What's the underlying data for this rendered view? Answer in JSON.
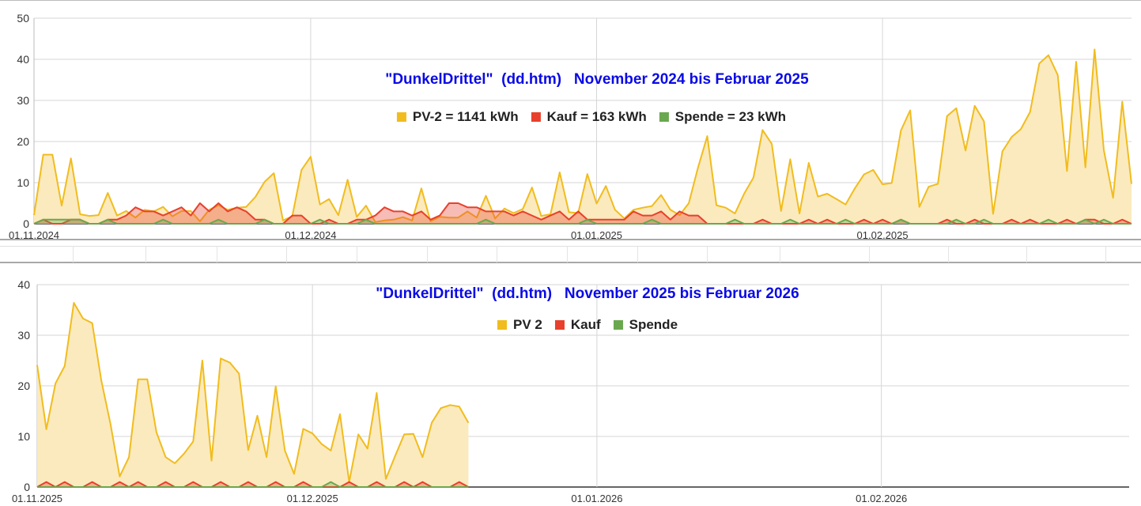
{
  "colors": {
    "pv": "#f1bc1e",
    "pv_fill": "#fbeabd",
    "kauf": "#e8402c",
    "spende": "#6aa84f",
    "title": "#0a0ae6"
  },
  "chart_data": [
    {
      "type": "area",
      "title": "\"DunkelDrittel\"  (dd.htm)   November 2024 bis Februar 2025",
      "legend": [
        "PV-2 = 1141 kWh",
        "Kauf = 163 kWh",
        "Spende = 23 kWh"
      ],
      "legend_position": "top",
      "ylim": [
        0,
        50
      ],
      "yticks": [
        0,
        10,
        20,
        30,
        40,
        50
      ],
      "xlim": [
        "01.11.2024",
        "28.02.2025"
      ],
      "xticks": [
        "01.11.2024",
        "01.12.2024",
        "01.01.2025",
        "01.02.2025"
      ],
      "grid": true,
      "x": [
        "01.11.2024",
        "02.11.2024",
        "03.11.2024",
        "04.11.2024",
        "05.11.2024",
        "06.11.2024",
        "07.11.2024",
        "08.11.2024",
        "09.11.2024",
        "10.11.2024",
        "11.11.2024",
        "12.11.2024",
        "13.11.2024",
        "14.11.2024",
        "15.11.2024",
        "16.11.2024",
        "17.11.2024",
        "18.11.2024",
        "19.11.2024",
        "20.11.2024",
        "21.11.2024",
        "22.11.2024",
        "23.11.2024",
        "24.11.2024",
        "25.11.2024",
        "26.11.2024",
        "27.11.2024",
        "28.11.2024",
        "29.11.2024",
        "30.11.2024",
        "01.12.2024",
        "02.12.2024",
        "03.12.2024",
        "04.12.2024",
        "05.12.2024",
        "06.12.2024",
        "07.12.2024",
        "08.12.2024",
        "09.12.2024",
        "10.12.2024",
        "11.12.2024",
        "12.12.2024",
        "13.12.2024",
        "14.12.2024",
        "15.12.2024",
        "16.12.2024",
        "17.12.2024",
        "18.12.2024",
        "19.12.2024",
        "20.12.2024",
        "21.12.2024",
        "22.12.2024",
        "23.12.2024",
        "24.12.2024",
        "25.12.2024",
        "26.12.2024",
        "27.12.2024",
        "28.12.2024",
        "29.12.2024",
        "30.12.2024",
        "31.12.2024",
        "01.01.2025",
        "02.01.2025",
        "03.01.2025",
        "04.01.2025",
        "05.01.2025",
        "06.01.2025",
        "07.01.2025",
        "08.01.2025",
        "09.01.2025",
        "10.01.2025",
        "11.01.2025",
        "12.01.2025",
        "13.01.2025",
        "14.01.2025",
        "15.01.2025",
        "16.01.2025",
        "17.01.2025",
        "18.01.2025",
        "19.01.2025",
        "20.01.2025",
        "21.01.2025",
        "22.01.2025",
        "23.01.2025",
        "24.01.2025",
        "25.01.2025",
        "26.01.2025",
        "27.01.2025",
        "28.01.2025",
        "29.01.2025",
        "30.01.2025",
        "31.01.2025",
        "01.02.2025",
        "02.02.2025",
        "03.02.2025",
        "04.02.2025",
        "05.02.2025",
        "06.02.2025",
        "07.02.2025",
        "08.02.2025",
        "09.02.2025",
        "10.02.2025",
        "11.02.2025",
        "12.02.2025",
        "13.02.2025",
        "14.02.2025",
        "15.02.2025",
        "16.02.2025",
        "17.02.2025",
        "18.02.2025",
        "19.02.2025",
        "20.02.2025",
        "21.02.2025",
        "22.02.2025",
        "23.02.2025",
        "24.02.2025",
        "25.02.2025",
        "26.02.2025",
        "27.02.2025",
        "28.02.2025"
      ],
      "series": [
        {
          "name": "PV-2",
          "values": [
            2.1,
            16.8,
            16.8,
            4.4,
            15.9,
            2.3,
            1.9,
            2.1,
            7.5,
            2,
            3.1,
            1.5,
            3.4,
            3,
            4.1,
            1.8,
            3.1,
            3.1,
            0.6,
            3.4,
            4.5,
            3.4,
            3.9,
            4.1,
            6.5,
            10.2,
            12.3,
            0.8,
            1.8,
            13.1,
            16.3,
            4.7,
            6,
            2.1,
            10.7,
            1.7,
            4.4,
            0.4,
            0.8,
            1,
            1.6,
            0.8,
            8.6,
            0.6,
            1.7,
            1.5,
            1.5,
            3,
            1.5,
            6.8,
            1.3,
            3.7,
            2.6,
            3.6,
            8.8,
            1.9,
            2.3,
            12.5,
            2.8,
            2.6,
            12.1,
            4.9,
            9.2,
            3.4,
            1.3,
            3.4,
            3.9,
            4.3,
            7,
            3.4,
            2.1,
            5,
            13.7,
            21.3,
            4.5,
            3.9,
            2.5,
            7.3,
            11.2,
            22.8,
            19.4,
            3.1,
            15.7,
            2.5,
            14.8,
            6.6,
            7.3,
            6,
            4.7,
            8.6,
            12,
            13.1,
            9.6,
            9.9,
            22.7,
            27.6,
            4.1,
            9,
            9.7,
            26.2,
            28.1,
            17.8,
            28.7,
            24.9,
            2.4,
            17.6,
            21.1,
            23,
            27.2,
            39,
            41,
            36.2,
            12.8,
            39.4,
            13.7,
            42.4,
            17.9,
            6.3,
            29.7,
            9.7
          ]
        },
        {
          "name": "Kauf",
          "values": [
            0,
            1,
            0,
            0,
            1,
            1,
            0,
            0,
            1,
            1,
            2,
            4,
            3,
            3,
            2,
            3,
            4,
            2,
            5,
            3,
            5,
            3,
            4,
            3,
            1,
            1,
            0,
            0,
            2,
            2,
            0,
            0,
            1,
            0,
            0,
            1,
            1,
            2,
            4,
            3,
            3,
            2,
            3,
            1,
            2,
            5,
            5,
            4,
            4,
            3,
            3,
            3,
            2,
            3,
            2,
            1,
            2,
            3,
            1,
            3,
            1,
            1,
            1,
            1,
            1,
            3,
            2,
            2,
            3,
            1,
            3,
            2,
            2,
            0,
            0,
            0,
            0,
            0,
            0,
            1,
            0,
            0,
            0,
            0,
            1,
            0,
            1,
            0,
            0,
            0,
            1,
            0,
            1,
            0,
            1,
            0,
            0,
            0,
            0,
            1,
            0,
            0,
            1,
            0,
            0,
            0,
            1,
            0,
            1,
            0,
            0,
            0,
            1,
            0,
            1,
            1,
            0,
            0,
            1,
            0
          ]
        },
        {
          "name": "Spende",
          "values": [
            0,
            1,
            1,
            1,
            1,
            1,
            0,
            0,
            1,
            0,
            0,
            0,
            0,
            0,
            1,
            0,
            0,
            0,
            0,
            0,
            1,
            0,
            0,
            0,
            0,
            1,
            0,
            0,
            0,
            0,
            0,
            1,
            0,
            0,
            0,
            0,
            1,
            0,
            0,
            0,
            0,
            0,
            0,
            0,
            0,
            0,
            0,
            0,
            0,
            1,
            0,
            0,
            0,
            0,
            0,
            0,
            0,
            0,
            0,
            0,
            1,
            0,
            0,
            0,
            0,
            0,
            0,
            1,
            0,
            0,
            0,
            0,
            0,
            0,
            0,
            0,
            1,
            0,
            0,
            0,
            0,
            0,
            1,
            0,
            0,
            0,
            0,
            0,
            1,
            0,
            0,
            0,
            0,
            0,
            1,
            0,
            0,
            0,
            0,
            0,
            1,
            0,
            0,
            1,
            0,
            0,
            0,
            0,
            0,
            0,
            1,
            0,
            0,
            0,
            1,
            0,
            1,
            0,
            0,
            0
          ]
        }
      ]
    },
    {
      "type": "area",
      "title": "\"DunkelDrittel\"  (dd.htm)   November 2025 bis Februar 2026",
      "legend": [
        "PV 2",
        "Kauf",
        "Spende"
      ],
      "legend_position": "top",
      "ylim": [
        0,
        40
      ],
      "yticks": [
        0,
        10,
        20,
        30,
        40
      ],
      "xlim": [
        "01.11.2025",
        "28.02.2026"
      ],
      "xticks": [
        "01.11.2025",
        "01.12.2025",
        "01.01.2026",
        "01.02.2026"
      ],
      "grid": true,
      "x": [
        "01.11.2025",
        "02.11.2025",
        "03.11.2025",
        "04.11.2025",
        "05.11.2025",
        "06.11.2025",
        "07.11.2025",
        "08.11.2025",
        "09.11.2025",
        "10.11.2025",
        "11.11.2025",
        "12.11.2025",
        "13.11.2025",
        "14.11.2025",
        "15.11.2025",
        "16.11.2025",
        "17.11.2025",
        "18.11.2025",
        "19.11.2025",
        "20.11.2025",
        "21.11.2025",
        "22.11.2025",
        "23.11.2025",
        "24.11.2025",
        "25.11.2025",
        "26.11.2025",
        "27.11.2025",
        "28.11.2025",
        "29.11.2025",
        "30.11.2025",
        "01.12.2025",
        "02.12.2025",
        "03.12.2025",
        "04.12.2025",
        "05.12.2025",
        "06.12.2025",
        "07.12.2025",
        "08.12.2025",
        "09.12.2025",
        "10.12.2025",
        "11.12.2025",
        "12.12.2025",
        "13.12.2025",
        "14.12.2025",
        "15.12.2025",
        "16.12.2025",
        "17.12.2025",
        "18.12.2025"
      ],
      "series": [
        {
          "name": "PV 2",
          "values": [
            24.1,
            11.4,
            20.5,
            23.9,
            36.4,
            33.3,
            32.4,
            21,
            12.4,
            2.1,
            5.9,
            21.3,
            21.3,
            10.8,
            5.9,
            4.7,
            6.6,
            9,
            25,
            5.2,
            25.4,
            24.6,
            22.4,
            7.3,
            14.1,
            5.9,
            19.9,
            7.2,
            2.6,
            11.5,
            10.6,
            8.5,
            7.2,
            14.4,
            1,
            10.4,
            7.6,
            18.6,
            1.6,
            6.1,
            10.4,
            10.5,
            5.9,
            12.7,
            15.6,
            16.2,
            15.9,
            12.7
          ]
        },
        {
          "name": "Kauf",
          "values": [
            0,
            1,
            0,
            1,
            0,
            0,
            1,
            0,
            0,
            1,
            0,
            1,
            0,
            0,
            1,
            0,
            0,
            1,
            0,
            0,
            1,
            0,
            0,
            1,
            0,
            0,
            1,
            0,
            0,
            1,
            0,
            0,
            0,
            0,
            1,
            0,
            0,
            1,
            0,
            0,
            1,
            0,
            1,
            0,
            0,
            0,
            1,
            0
          ]
        },
        {
          "name": "Spende",
          "values": [
            0,
            0,
            0,
            0,
            0,
            0,
            0,
            0,
            0,
            0,
            0,
            0,
            0,
            0,
            0,
            0,
            0,
            0,
            0,
            0,
            0,
            0,
            0,
            0,
            0,
            0,
            0,
            0,
            0,
            0,
            0,
            0,
            1,
            0,
            0,
            0,
            0,
            0,
            0,
            0,
            0,
            0,
            0,
            0,
            0,
            0,
            0,
            0
          ]
        }
      ]
    }
  ]
}
